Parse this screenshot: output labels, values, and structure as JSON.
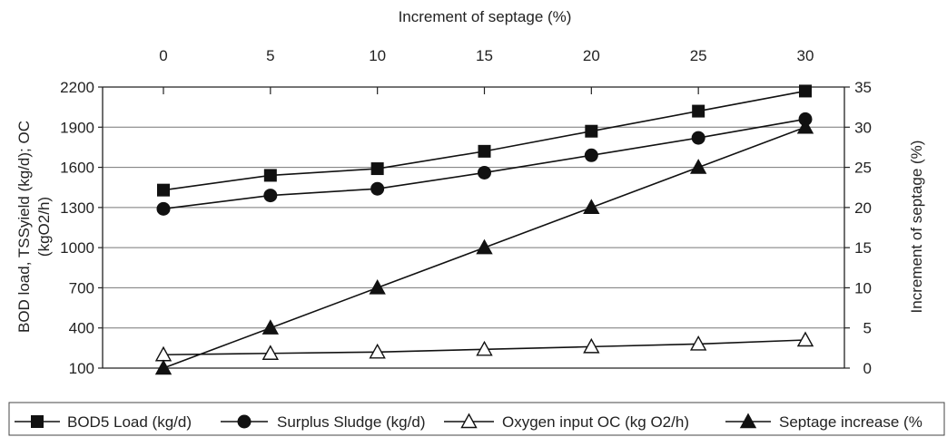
{
  "chart_data": {
    "type": "line",
    "x_title": "Increment of septage (%)",
    "x_ticks": [
      0,
      5,
      10,
      15,
      20,
      25,
      30
    ],
    "x": [
      0,
      5,
      10,
      15,
      20,
      25,
      30
    ],
    "xlim": [
      0,
      30
    ],
    "y_left_title": "BOD load, TSSyield (kg/d); OC (kgO2/h)",
    "y_left_ticks": [
      100,
      400,
      700,
      1000,
      1300,
      1600,
      1900,
      2200
    ],
    "y_left_lim": [
      100,
      2200
    ],
    "y_right_title": "Increment of septage (%)",
    "y_right_ticks": [
      0,
      5,
      10,
      15,
      20,
      25,
      30,
      35
    ],
    "y_right_lim": [
      0,
      35
    ],
    "grid": "horizontal",
    "legend_position": "bottom",
    "series": [
      {
        "name": "BOD5 Load (kg/d)",
        "marker": "square-filled",
        "axis": "left",
        "values": [
          1430,
          1540,
          1590,
          1720,
          1870,
          2020,
          2170
        ]
      },
      {
        "name": "Surplus Sludge (kg/d)",
        "marker": "circle-filled",
        "axis": "left",
        "values": [
          1290,
          1390,
          1440,
          1560,
          1690,
          1820,
          1960
        ]
      },
      {
        "name": "Oxygen input OC (kg O2/h)",
        "marker": "triangle-open",
        "axis": "left",
        "values": [
          200,
          210,
          220,
          240,
          260,
          280,
          310
        ]
      },
      {
        "name": "Septage increase (%",
        "marker": "triangle-filled",
        "axis": "right",
        "values": [
          0,
          5,
          10,
          15,
          20,
          25,
          30
        ]
      }
    ]
  }
}
